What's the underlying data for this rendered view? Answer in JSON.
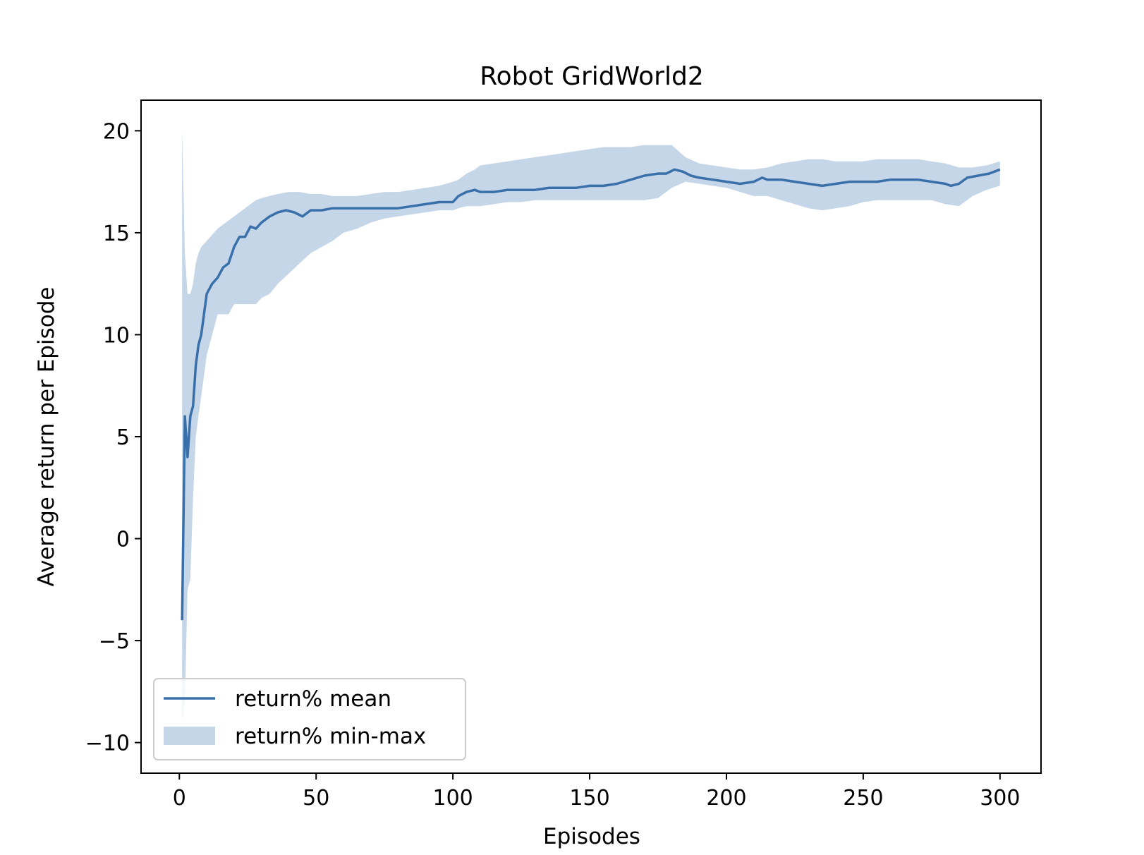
{
  "chart_data": {
    "type": "line",
    "title": "Robot GridWorld2",
    "xlabel": "Episodes",
    "ylabel": "Average return per Episode",
    "xlim": [
      -14,
      315
    ],
    "ylim": [
      -11.5,
      21.5
    ],
    "xticks": [
      0,
      50,
      100,
      150,
      200,
      250,
      300
    ],
    "xtick_labels": [
      "0",
      "50",
      "100",
      "150",
      "200",
      "250",
      "300"
    ],
    "yticks": [
      -10,
      -5,
      0,
      5,
      10,
      15,
      20
    ],
    "ytick_labels": [
      "−10",
      "−5",
      "0",
      "5",
      "10",
      "15",
      "20"
    ],
    "grid": false,
    "legend_position": "lower-left",
    "colors": {
      "line": "#3a70aa",
      "band": "#c5d6e8"
    },
    "series": [
      {
        "name": "return% mean",
        "kind": "line",
        "x": [
          1,
          2,
          3,
          4,
          5,
          6,
          7,
          8,
          10,
          12,
          14,
          16,
          18,
          20,
          22,
          24,
          26,
          28,
          30,
          33,
          36,
          39,
          42,
          45,
          48,
          52,
          56,
          60,
          65,
          70,
          75,
          80,
          85,
          90,
          95,
          100,
          102,
          105,
          108,
          110,
          115,
          120,
          125,
          130,
          135,
          140,
          145,
          150,
          155,
          160,
          165,
          170,
          175,
          178,
          181,
          184,
          187,
          190,
          195,
          200,
          205,
          210,
          213,
          215,
          220,
          225,
          230,
          235,
          240,
          245,
          250,
          255,
          260,
          265,
          270,
          275,
          280,
          282,
          285,
          288,
          292,
          296,
          298,
          300
        ],
        "y": [
          -4,
          6,
          4,
          6,
          6.5,
          8.5,
          9.5,
          10,
          12,
          12.5,
          12.8,
          13.3,
          13.5,
          14.3,
          14.8,
          14.8,
          15.3,
          15.2,
          15.5,
          15.8,
          16,
          16.1,
          16,
          15.8,
          16.1,
          16.1,
          16.2,
          16.2,
          16.2,
          16.2,
          16.2,
          16.2,
          16.3,
          16.4,
          16.5,
          16.5,
          16.8,
          17,
          17.1,
          17,
          17,
          17.1,
          17.1,
          17.1,
          17.2,
          17.2,
          17.2,
          17.3,
          17.3,
          17.4,
          17.6,
          17.8,
          17.9,
          17.9,
          18.1,
          18,
          17.8,
          17.7,
          17.6,
          17.5,
          17.4,
          17.5,
          17.7,
          17.6,
          17.6,
          17.5,
          17.4,
          17.3,
          17.4,
          17.5,
          17.5,
          17.5,
          17.6,
          17.6,
          17.6,
          17.5,
          17.4,
          17.3,
          17.4,
          17.7,
          17.8,
          17.9,
          18,
          18.1
        ]
      },
      {
        "name": "return% min-max",
        "kind": "band",
        "x": [
          1,
          2,
          3,
          4,
          5,
          6,
          7,
          8,
          10,
          12,
          14,
          16,
          18,
          20,
          22,
          24,
          26,
          28,
          30,
          33,
          36,
          40,
          44,
          48,
          52,
          56,
          60,
          65,
          70,
          75,
          80,
          85,
          90,
          95,
          100,
          102,
          105,
          108,
          110,
          115,
          120,
          125,
          130,
          135,
          140,
          145,
          150,
          155,
          160,
          165,
          170,
          175,
          180,
          185,
          190,
          195,
          200,
          205,
          210,
          215,
          220,
          225,
          230,
          235,
          240,
          245,
          250,
          255,
          260,
          265,
          270,
          275,
          280,
          285,
          290,
          295,
          300
        ],
        "lower": [
          -9,
          -8,
          -2.5,
          -2,
          2,
          5,
          6,
          7,
          9,
          10,
          11,
          11,
          11,
          11.5,
          11.5,
          11.5,
          11.5,
          11.5,
          11.8,
          12,
          12.5,
          13,
          13.5,
          14,
          14.3,
          14.6,
          15,
          15.2,
          15.5,
          15.7,
          15.8,
          15.9,
          16,
          16.1,
          16.1,
          16.2,
          16.3,
          16.3,
          16.3,
          16.4,
          16.5,
          16.5,
          16.6,
          16.6,
          16.6,
          16.6,
          16.6,
          16.6,
          16.6,
          16.6,
          16.6,
          16.7,
          17.2,
          17.5,
          17.4,
          17.3,
          17.2,
          17,
          16.8,
          16.8,
          16.6,
          16.4,
          16.2,
          16.1,
          16.2,
          16.3,
          16.5,
          16.6,
          16.6,
          16.6,
          16.6,
          16.6,
          16.4,
          16.3,
          16.8,
          17.1,
          17.3
        ],
        "upper": [
          20,
          14,
          12,
          12,
          12.5,
          13.5,
          14,
          14.3,
          14.6,
          14.9,
          15.2,
          15.4,
          15.6,
          15.8,
          16,
          16.2,
          16.4,
          16.6,
          16.7,
          16.8,
          16.9,
          17,
          17,
          16.9,
          16.9,
          16.8,
          16.8,
          16.8,
          16.9,
          17,
          17,
          17.1,
          17.2,
          17.3,
          17.5,
          17.6,
          17.9,
          18.1,
          18.3,
          18.4,
          18.5,
          18.6,
          18.7,
          18.8,
          18.9,
          19,
          19.1,
          19.2,
          19.2,
          19.2,
          19.3,
          19.3,
          19.3,
          18.7,
          18.4,
          18.3,
          18.2,
          18.1,
          18.1,
          18.2,
          18.4,
          18.5,
          18.6,
          18.6,
          18.5,
          18.5,
          18.5,
          18.6,
          18.6,
          18.6,
          18.6,
          18.5,
          18.4,
          18.2,
          18.2,
          18.3,
          18.5
        ]
      }
    ]
  }
}
